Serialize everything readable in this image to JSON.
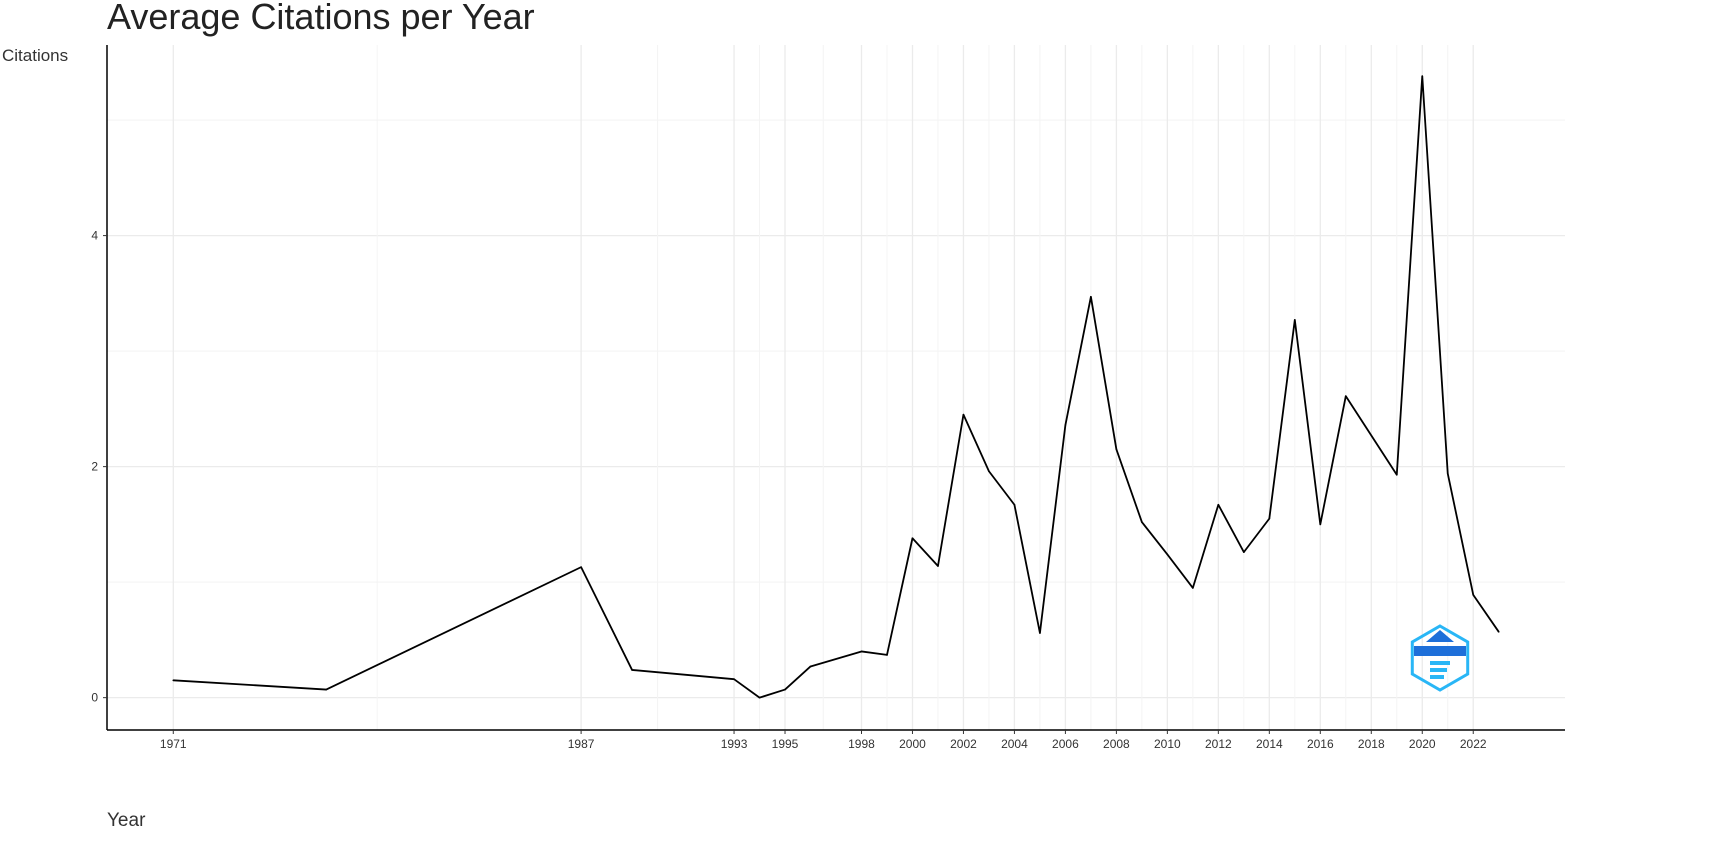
{
  "chart_data": {
    "type": "line",
    "title": "Average Citations per Year",
    "xlabel": "Year",
    "ylabel": "Citations",
    "x_ticks": [
      1971,
      1987,
      1993,
      1995,
      1998,
      2000,
      2002,
      2004,
      2006,
      2008,
      2010,
      2012,
      2014,
      2016,
      2018,
      2020,
      2022
    ],
    "y_ticks": [
      0,
      2,
      4
    ],
    "xlim": [
      1968.4,
      2025.6
    ],
    "ylim": [
      -0.28,
      5.65
    ],
    "grid": true,
    "line_color": "#000000",
    "series": [
      {
        "x": [
          1971,
          1977,
          1987,
          1989,
          1993,
          1994,
          1995,
          1996,
          1998,
          1999,
          2000,
          2001,
          2002,
          2003,
          2004,
          2005,
          2006,
          2007,
          2008,
          2009,
          2010,
          2011,
          2012,
          2013,
          2014,
          2015,
          2016,
          2017,
          2019,
          2020,
          2021,
          2022,
          2023
        ],
        "y": [
          0.15,
          0.07,
          1.13,
          0.24,
          0.16,
          0.0,
          0.07,
          0.27,
          0.4,
          0.37,
          1.38,
          1.14,
          2.45,
          1.96,
          1.67,
          0.56,
          2.36,
          3.47,
          2.15,
          1.52,
          1.24,
          0.95,
          1.67,
          1.26,
          1.55,
          3.27,
          1.5,
          2.61,
          1.93,
          5.38,
          1.94,
          0.89,
          0.57
        ]
      }
    ]
  },
  "watermark": {
    "name": "bibliometrix-logo",
    "colors": [
      "#1e6fd9",
      "#29b6f6"
    ]
  }
}
